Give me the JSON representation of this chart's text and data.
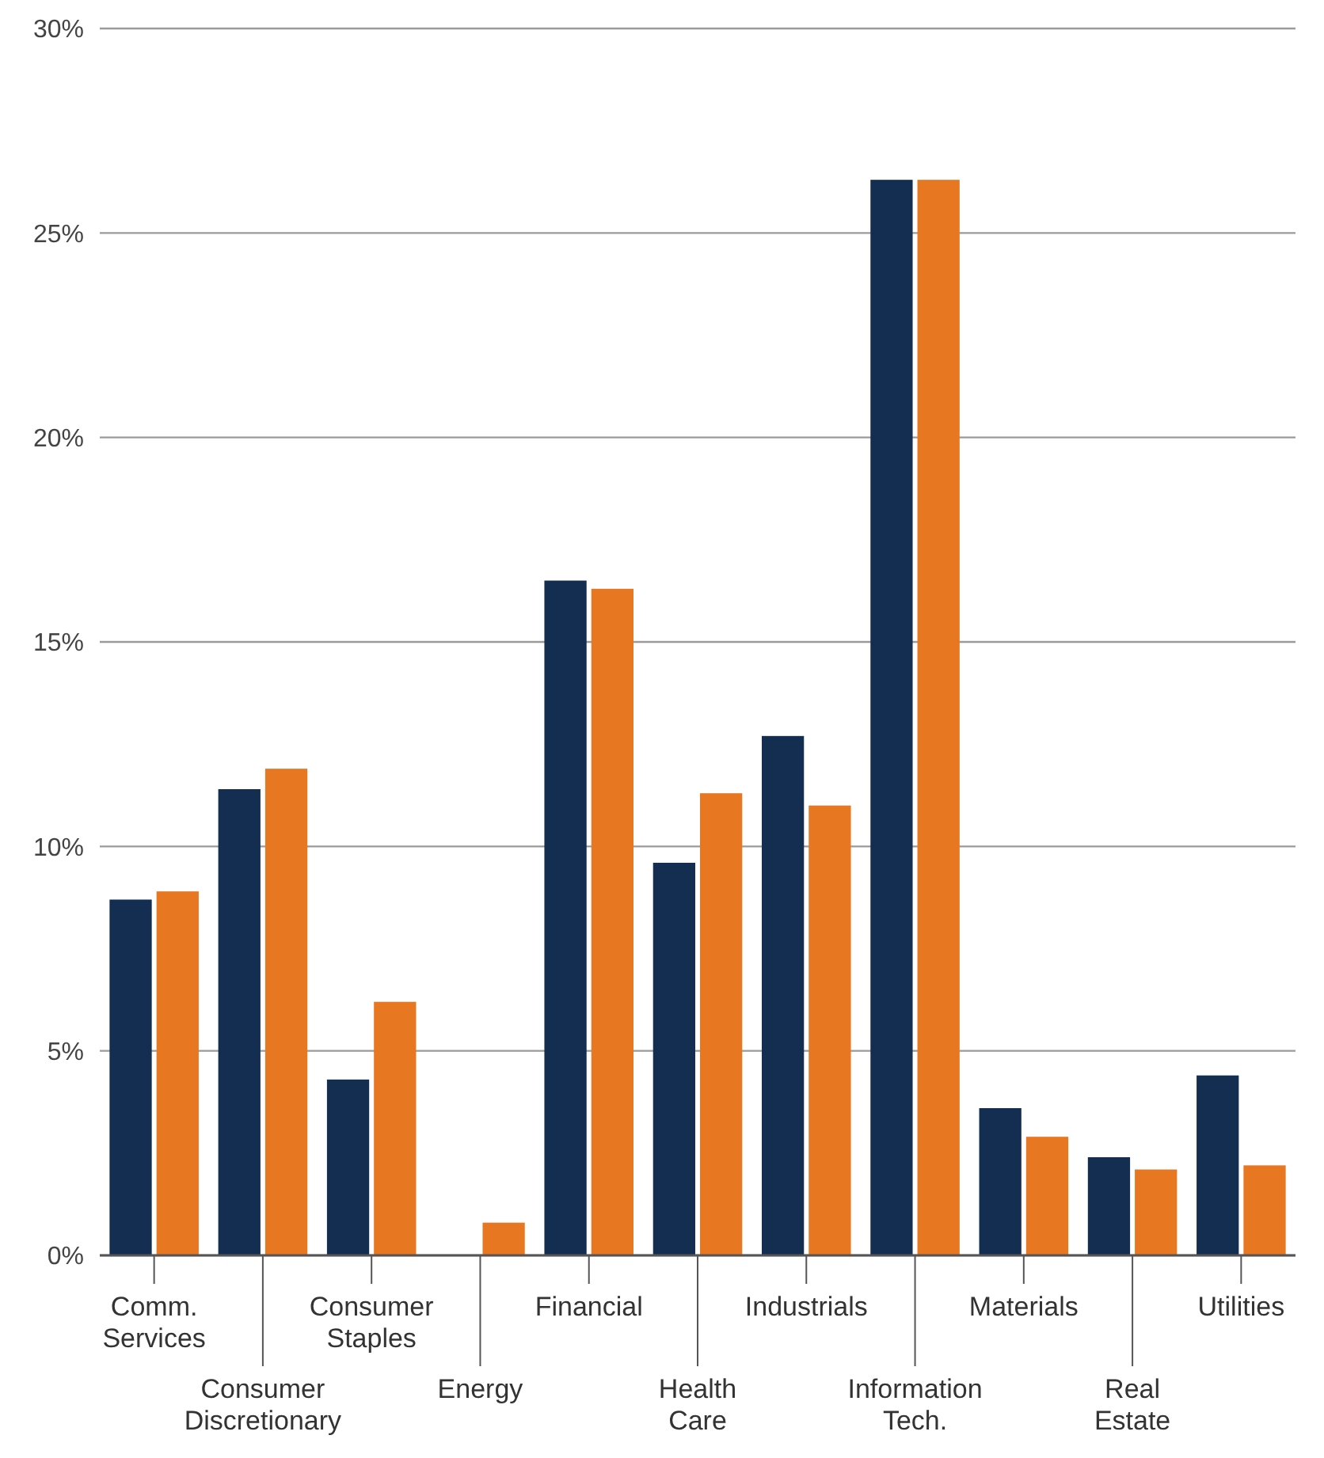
{
  "chart_data": {
    "type": "bar",
    "categories": [
      "Comm. Services",
      "Consumer Discretionary",
      "Consumer Staples",
      "Energy",
      "Financial",
      "Health Care",
      "Industrials",
      "Information Tech.",
      "Materials",
      "Real Estate",
      "Utilities"
    ],
    "series": [
      {
        "color": "#132e51",
        "values": [
          8.7,
          11.4,
          4.3,
          0,
          16.5,
          9.6,
          12.7,
          26.3,
          3.6,
          2.4,
          4.4
        ]
      },
      {
        "color": "#e87722",
        "values": [
          8.9,
          11.9,
          6.2,
          0.8,
          16.3,
          11.3,
          11.0,
          26.3,
          2.9,
          2.1,
          2.2
        ]
      }
    ],
    "ylim": [
      0,
      30
    ],
    "yticks": [
      {
        "value": 0,
        "label": "0%"
      },
      {
        "value": 5,
        "label": "5%"
      },
      {
        "value": 10,
        "label": "10%"
      },
      {
        "value": 15,
        "label": "15%"
      },
      {
        "value": 20,
        "label": "20%"
      },
      {
        "value": 25,
        "label": "25%"
      },
      {
        "value": 30,
        "label": "30%"
      }
    ],
    "grid": "y"
  }
}
